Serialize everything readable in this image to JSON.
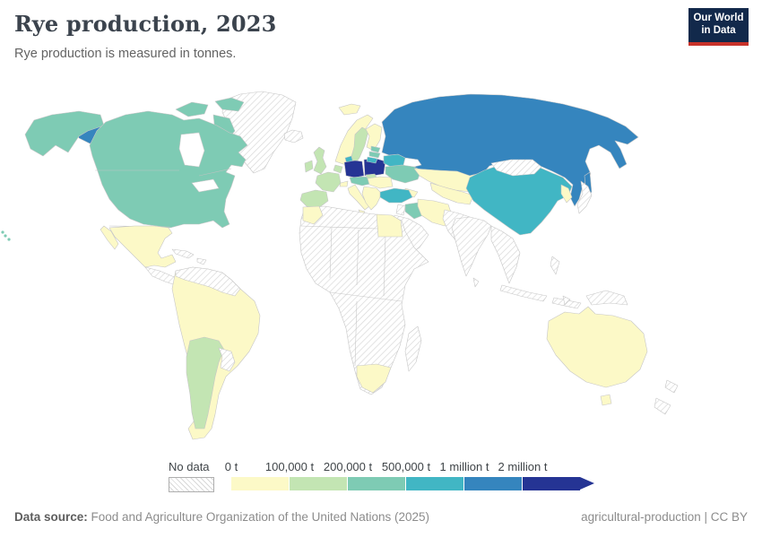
{
  "header": {
    "title": "Rye production, 2023",
    "subtitle": "Rye production is measured in tonnes."
  },
  "logo": {
    "line1": "Our World",
    "line2": "in Data",
    "bg": "#12294b",
    "accent": "#c8322a"
  },
  "legend": {
    "no_data_label": "No data",
    "bins": [
      {
        "label": "0 t",
        "color": "#fcf9c7"
      },
      {
        "label": "100,000 t",
        "color": "#c3e5b3"
      },
      {
        "label": "200,000 t",
        "color": "#7ecbb4"
      },
      {
        "label": "500,000 t",
        "color": "#41b6c4"
      },
      {
        "label": "1 million t",
        "color": "#3585be"
      },
      {
        "label": "2 million t",
        "color": "#253494"
      }
    ]
  },
  "footer": {
    "datasource_label": "Data source:",
    "datasource_text": " Food and Agriculture Organization of the United Nations (2025)",
    "right_text": "agricultural-production | CC BY"
  },
  "map": {
    "ocean": "#ffffff",
    "border": "#c6c6c6",
    "bin_colors": {
      "bin1": "#fcf9c7",
      "bin2": "#c3e5b3",
      "bin3": "#7ecbb4",
      "bin4": "#41b6c4",
      "bin5": "#3585be",
      "bin6": "#253494"
    },
    "region_fills": {
      "alaska": "bin3",
      "canada-arctic": "bin3",
      "canada-us": "bin3",
      "hawaii": "bin3",
      "chukotka": "bin5",
      "greenland": "nodata",
      "iceland": "nodata",
      "mexico": "bin1",
      "central-america": "nodata",
      "caribbean": "nodata",
      "south-america": "bin1",
      "sa-north": "nodata",
      "argentina": "bin2",
      "paraguay-uruguay": "nodata",
      "svalbard": "bin1",
      "norway": "bin1",
      "sweden": "bin2",
      "finland": "bin1",
      "denmark": "bin4",
      "uk": "bin2",
      "ireland": "bin2",
      "benelux": "bin2",
      "france": "bin2",
      "iberia": "bin2",
      "germany": "bin6",
      "poland": "bin6",
      "czech-austria": "bin3",
      "slovakia": "bin2",
      "switzerland": "bin1",
      "italy": "bin1",
      "hungary-romania": "bin1",
      "balkans": "bin1",
      "estonia": "bin3",
      "latvia": "bin3",
      "lithuania": "bin4",
      "belarus": "bin4",
      "ukraine": "bin3",
      "russia": "bin5",
      "sakhalin": "bin5",
      "kazakhstan": "bin1",
      "central-asia": "bin1",
      "caucasus": "bin1",
      "turkey": "bin4",
      "iraq": "bin3",
      "iran": "bin1",
      "levant": "nodata",
      "saudi-arabia": "nodata",
      "afghanistan-pakistan": "nodata",
      "india": "nodata",
      "sri-lanka": "nodata",
      "se-asia": "nodata",
      "indonesia": "nodata",
      "philippines": "nodata",
      "china": "bin4",
      "mongolia": "nodata",
      "korea": "bin1",
      "japan": "nodata",
      "africa": "nodata",
      "egypt": "bin1",
      "morocco": "bin1",
      "south-africa": "bin1",
      "madagascar": "nodata",
      "australia": "bin1",
      "tasmania": "bin1",
      "new-zealand": "nodata",
      "new-guinea": "nodata"
    }
  },
  "chart_data": {
    "type": "choropleth",
    "title": "Rye production, 2023",
    "subtitle": "Rye production is measured in tonnes.",
    "unit": "tonnes",
    "legend_bin_edges": [
      "0 t",
      "100,000 t",
      "200,000 t",
      "500,000 t",
      "1 million t",
      "2 million t"
    ],
    "legend_colors": [
      "#fcf9c7",
      "#c3e5b3",
      "#7ecbb4",
      "#41b6c4",
      "#3585be",
      "#253494"
    ],
    "no_data_style": "gray diagonal hatching",
    "values_by_bin": {
      "no_data": [
        "Greenland",
        "Iceland",
        "Japan",
        "Mongolia",
        "India",
        "Saudi Arabia",
        "most of Africa",
        "Colombia",
        "Venezuela",
        "Paraguay",
        "Uruguay",
        "Central America",
        "Caribbean",
        "Southeast Asia",
        "Indonesia",
        "Philippines",
        "Afghanistan",
        "Pakistan",
        "Papua New Guinea",
        "Madagascar",
        "New Zealand"
      ],
      "0-100,000 t": [
        "Mexico",
        "Brazil",
        "Peru",
        "Bolivia",
        "Chile",
        "Norway",
        "Finland",
        "Switzerland",
        "Italy",
        "Hungary",
        "Romania",
        "Balkans",
        "Greece",
        "Egypt",
        "Morocco",
        "South Africa",
        "Kazakhstan",
        "Uzbekistan",
        "Turkmenistan",
        "Iran",
        "North Korea",
        "South Korea",
        "Australia"
      ],
      "100,000-200,000 t": [
        "Argentina",
        "United Kingdom",
        "Ireland",
        "France",
        "Spain",
        "Portugal",
        "Sweden",
        "Netherlands",
        "Belgium",
        "Slovakia"
      ],
      "200,000-500,000 t": [
        "Canada",
        "United States",
        "Ukraine",
        "Austria",
        "Czechia",
        "Estonia",
        "Latvia",
        "Iraq"
      ],
      "500,000-1 million t": [
        "China",
        "Belarus",
        "Denmark",
        "Lithuania",
        "Turkey"
      ],
      "1-2 million t": [
        "Russia"
      ],
      "over 2 million t": [
        "Germany",
        "Poland"
      ]
    }
  }
}
